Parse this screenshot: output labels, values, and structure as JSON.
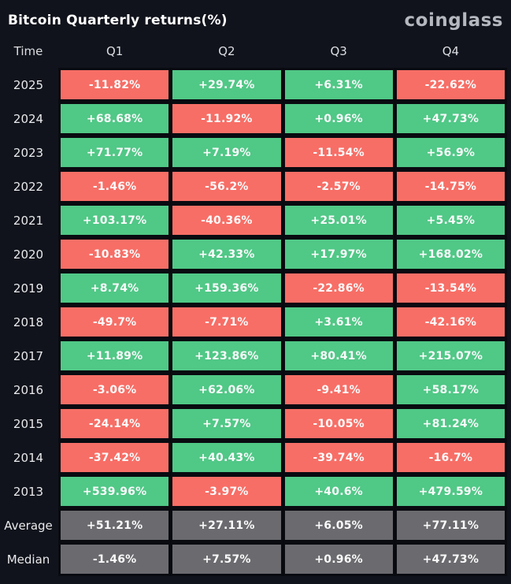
{
  "title": "Bitcoin Quarterly returns(%)",
  "logo_text": "coinglass",
  "columns": [
    "Time",
    "Q1",
    "Q2",
    "Q3",
    "Q4"
  ],
  "colors": {
    "positive": "#50C886",
    "negative": "#F76E66",
    "summary": "#6B6B6F",
    "background": "#11131C"
  },
  "chart_data": {
    "type": "table",
    "title": "Bitcoin Quarterly returns(%)",
    "columns": [
      "Time",
      "Q1",
      "Q2",
      "Q3",
      "Q4"
    ],
    "legend": "green = positive quarterly return, red = negative quarterly return, gray = summary statistic",
    "rows": [
      {
        "label": "2025",
        "kind": "year",
        "values": [
          "-11.82%",
          "+29.74%",
          "+6.31%",
          "-22.62%"
        ]
      },
      {
        "label": "2024",
        "kind": "year",
        "values": [
          "+68.68%",
          "-11.92%",
          "+0.96%",
          "+47.73%"
        ]
      },
      {
        "label": "2023",
        "kind": "year",
        "values": [
          "+71.77%",
          "+7.19%",
          "-11.54%",
          "+56.9%"
        ]
      },
      {
        "label": "2022",
        "kind": "year",
        "values": [
          "-1.46%",
          "-56.2%",
          "-2.57%",
          "-14.75%"
        ]
      },
      {
        "label": "2021",
        "kind": "year",
        "values": [
          "+103.17%",
          "-40.36%",
          "+25.01%",
          "+5.45%"
        ]
      },
      {
        "label": "2020",
        "kind": "year",
        "values": [
          "-10.83%",
          "+42.33%",
          "+17.97%",
          "+168.02%"
        ]
      },
      {
        "label": "2019",
        "kind": "year",
        "values": [
          "+8.74%",
          "+159.36%",
          "-22.86%",
          "-13.54%"
        ]
      },
      {
        "label": "2018",
        "kind": "year",
        "values": [
          "-49.7%",
          "-7.71%",
          "+3.61%",
          "-42.16%"
        ]
      },
      {
        "label": "2017",
        "kind": "year",
        "values": [
          "+11.89%",
          "+123.86%",
          "+80.41%",
          "+215.07%"
        ]
      },
      {
        "label": "2016",
        "kind": "year",
        "values": [
          "-3.06%",
          "+62.06%",
          "-9.41%",
          "+58.17%"
        ]
      },
      {
        "label": "2015",
        "kind": "year",
        "values": [
          "-24.14%",
          "+7.57%",
          "-10.05%",
          "+81.24%"
        ]
      },
      {
        "label": "2014",
        "kind": "year",
        "values": [
          "-37.42%",
          "+40.43%",
          "-39.74%",
          "-16.7%"
        ]
      },
      {
        "label": "2013",
        "kind": "year",
        "values": [
          "+539.96%",
          "-3.97%",
          "+40.6%",
          "+479.59%"
        ]
      },
      {
        "label": "Average",
        "kind": "summary",
        "values": [
          "+51.21%",
          "+27.11%",
          "+6.05%",
          "+77.11%"
        ]
      },
      {
        "label": "Median",
        "kind": "summary",
        "values": [
          "-1.46%",
          "+7.57%",
          "+0.96%",
          "+47.73%"
        ]
      }
    ]
  }
}
